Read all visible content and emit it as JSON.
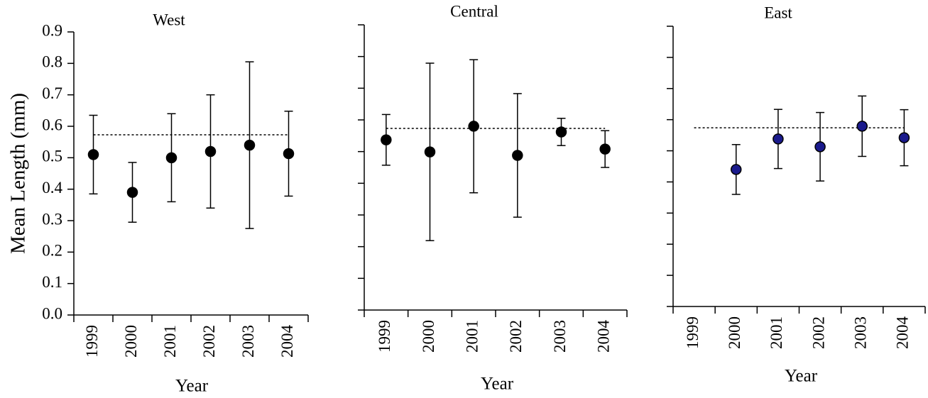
{
  "chart_data": [
    {
      "type": "errorbar",
      "title": "West",
      "x_label": "Year",
      "y_label": "Mean Length (mm)",
      "categories": [
        "1999",
        "2000",
        "2001",
        "2002",
        "2003",
        "2004"
      ],
      "values": [
        0.51,
        0.39,
        0.5,
        0.52,
        0.54,
        0.513
      ],
      "errors": [
        0.125,
        0.095,
        0.14,
        0.18,
        0.265,
        0.135
      ],
      "color": "#000000",
      "reference": 0.573,
      "ylim": [
        0,
        0.9
      ],
      "yticks": [
        {
          "value": 0,
          "label": "0.0"
        },
        0.1,
        0.2,
        0.3,
        0.4,
        0.5,
        0.6,
        0.7,
        0.8,
        0.9
      ],
      "tick_labels": true,
      "grid": false
    },
    {
      "type": "errorbar",
      "title": "Central",
      "x_label": "Year",
      "categories": [
        "1999",
        "2000",
        "2001",
        "2002",
        "2003",
        "2004"
      ],
      "values": [
        0.537,
        0.499,
        0.58,
        0.488,
        0.562,
        0.508
      ],
      "errors": [
        0.08,
        0.28,
        0.21,
        0.195,
        0.043,
        0.058
      ],
      "color": "#000000",
      "reference": 0.573,
      "ylim": [
        0,
        0.9
      ],
      "yticks": [
        0,
        0.1,
        0.2,
        0.3,
        0.4,
        0.5,
        0.6,
        0.7,
        0.8,
        0.9
      ],
      "tick_labels": false,
      "grid": false
    },
    {
      "type": "errorbar",
      "title": "East",
      "x_label": "Year",
      "categories": [
        "1999",
        "2000",
        "2001",
        "2002",
        "2003",
        "2004"
      ],
      "values": [
        null,
        0.44,
        0.538,
        0.513,
        0.579,
        0.542
      ],
      "errors": [
        null,
        0.08,
        0.095,
        0.11,
        0.097,
        0.09
      ],
      "color": "#1a1a8c",
      "reference": 0.574,
      "ylim": [
        0,
        0.9
      ],
      "yticks": [
        0,
        0.1,
        0.2,
        0.3,
        0.4,
        0.5,
        0.6,
        0.7,
        0.8,
        0.9
      ],
      "tick_labels": false,
      "grid": false
    }
  ]
}
